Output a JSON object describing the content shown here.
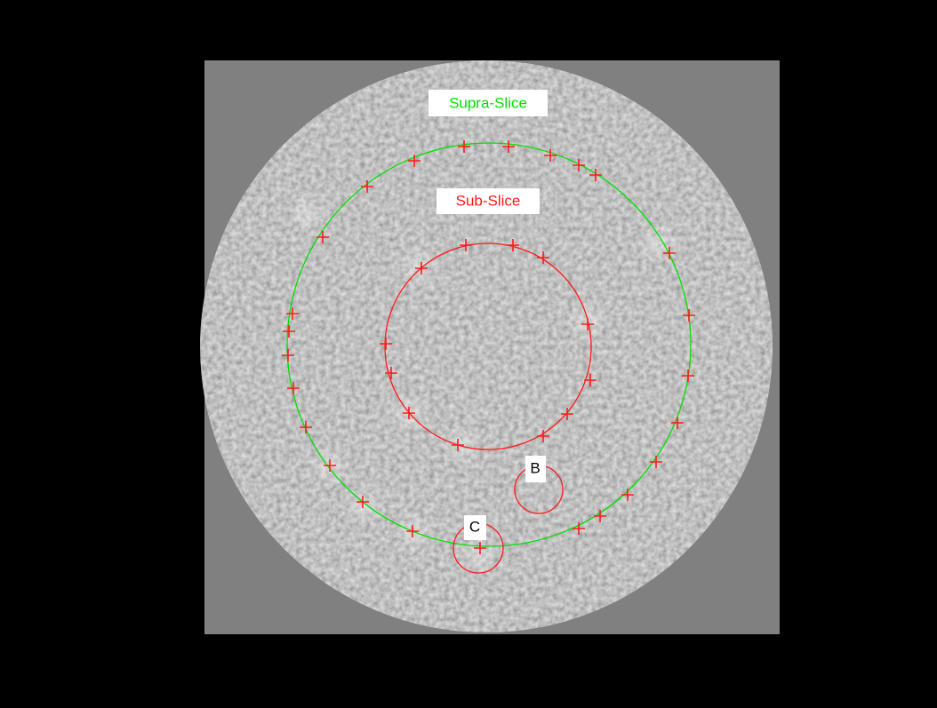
{
  "labels": {
    "supra": "Supra-Slice",
    "sub": "Sub-Slice",
    "b": "B",
    "c": "C"
  }
}
